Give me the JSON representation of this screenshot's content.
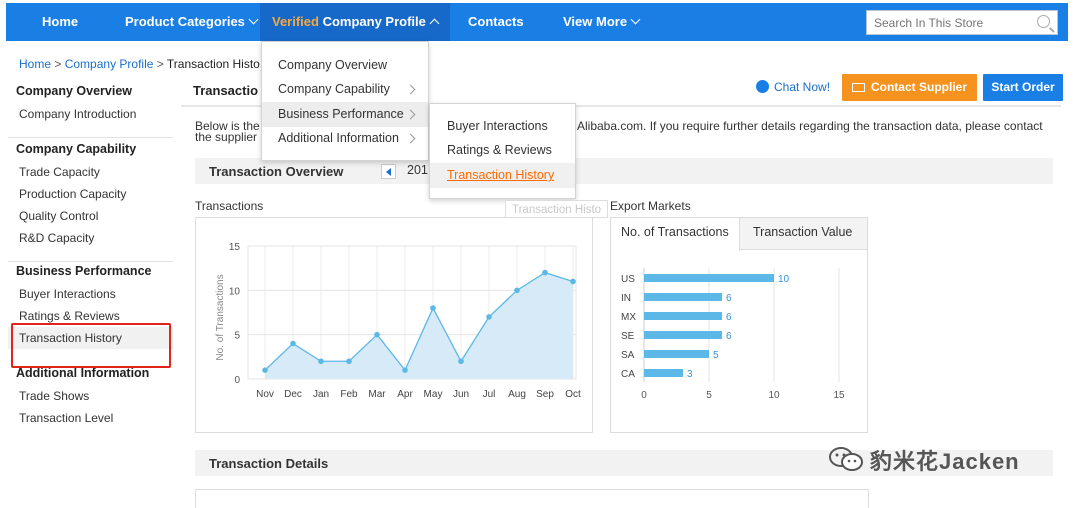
{
  "nav": {
    "home": "Home",
    "product_categories": "Product Categories",
    "verified_word": "Verified",
    "company_profile": "Company Profile",
    "contacts": "Contacts",
    "view_more": "View More",
    "search_placeholder": "Search In This Store"
  },
  "breadcrumb": {
    "home": "Home",
    "sep": ">",
    "company_profile": "Company Profile",
    "current": "Transaction Histo"
  },
  "sidebar": {
    "groups": [
      {
        "title": "Company Overview",
        "items": [
          "Company Introduction"
        ]
      },
      {
        "title": "Company Capability",
        "items": [
          "Trade Capacity",
          "Production Capacity",
          "Quality Control",
          "R&D Capacity"
        ]
      },
      {
        "title": "Business Performance",
        "items": [
          "Buyer Interactions",
          "Ratings & Reviews",
          "Transaction History"
        ]
      },
      {
        "title": "Additional Information",
        "items": [
          "Trade Shows",
          "Transaction Level"
        ]
      }
    ]
  },
  "main": {
    "section_title": "Transactio",
    "chat_now": "Chat Now!",
    "contact_supplier": "Contact Supplier",
    "start_order": "Start Order",
    "intro_line1": "Below is the",
    "intro_line1b": "Alibaba.com. If you require further details regarding the transaction data, please contact",
    "intro_line2": "the supplier",
    "overview_title": "Transaction Overview",
    "year_text": "201",
    "transactions_label": "Transactions",
    "export_label": "Export Markets",
    "tab_count": "No. of Transactions",
    "tab_value": "Transaction Value",
    "details_title": "Transaction Details"
  },
  "dropdown": {
    "items": [
      "Company Overview",
      "Company Capability",
      "Business Performance",
      "Additional Information"
    ],
    "submenu": [
      "Buyer Interactions",
      "Ratings & Reviews",
      "Transaction History"
    ],
    "tooltip": "Transaction Histo"
  },
  "watermark": "豹米花Jacken",
  "colors": {
    "nav_bg": "#1a7fe5",
    "accent_orange": "#f5931e",
    "link": "#1a6fc9",
    "area_fill": "#d6eaf7",
    "series_line": "#5cb8e6",
    "highlight_red": "#e2231a"
  },
  "chart_data": [
    {
      "type": "area",
      "title": "Transactions",
      "ylabel": "No. of Transactions",
      "categories": [
        "Nov",
        "Dec",
        "Jan",
        "Feb",
        "Mar",
        "Apr",
        "May",
        "Jun",
        "Jul",
        "Aug",
        "Sep",
        "Oct"
      ],
      "values": [
        1,
        4,
        2,
        2,
        5,
        1,
        8,
        2,
        7,
        10,
        12,
        11
      ],
      "yticks": [
        0,
        5,
        10,
        15
      ],
      "ylim": [
        0,
        15
      ],
      "grid": true
    },
    {
      "type": "bar",
      "orientation": "horizontal",
      "categories": [
        "US",
        "IN",
        "MX",
        "SE",
        "SA",
        "CA"
      ],
      "values": [
        10,
        6,
        6,
        6,
        5,
        3
      ],
      "xticks": [
        0,
        5,
        10,
        15
      ],
      "xlim": [
        0,
        15
      ],
      "grid": true
    }
  ]
}
